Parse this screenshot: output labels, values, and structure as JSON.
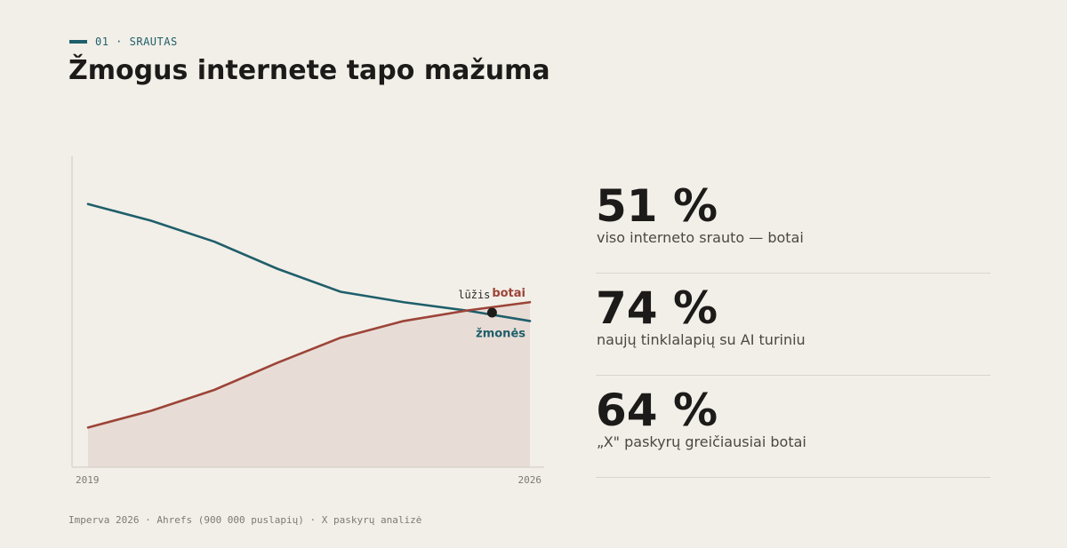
{
  "eyebrow": "01 · SRAUTAS",
  "headline": "Žmogus internete tapo mažuma",
  "chart_data": {
    "type": "line",
    "x": [
      2019,
      2020,
      2021,
      2022,
      2023,
      2024,
      2025,
      2026
    ],
    "x_tick_labels": [
      "2019",
      "2026"
    ],
    "series": [
      {
        "name": "žmonės",
        "color": "#1f5f6b",
        "values": [
          63,
          59,
          54,
          47.5,
          42,
          39.5,
          37.5,
          35
        ]
      },
      {
        "name": "botai",
        "color": "#9c4438",
        "values": [
          9.5,
          13.5,
          18.5,
          25,
          31,
          35,
          37.5,
          39.5
        ],
        "filled": true,
        "fill_color": "#e8ddd6"
      }
    ],
    "ylim": [
      0,
      74
    ],
    "annotation": {
      "label": "lūžis",
      "x": 2025.4,
      "y": 37
    },
    "grid": false
  },
  "stats": [
    {
      "value": "51 %",
      "desc": "viso interneto srauto — botai"
    },
    {
      "value": "74 %",
      "desc": "naujų tinklalapių su AI turiniu"
    },
    {
      "value": "64 %",
      "desc": "„X\" paskyrų greičiausiai botai"
    }
  ],
  "source": "Imperva 2026 · Ahrefs (900 000 puslapių) · X paskyrų analizė"
}
